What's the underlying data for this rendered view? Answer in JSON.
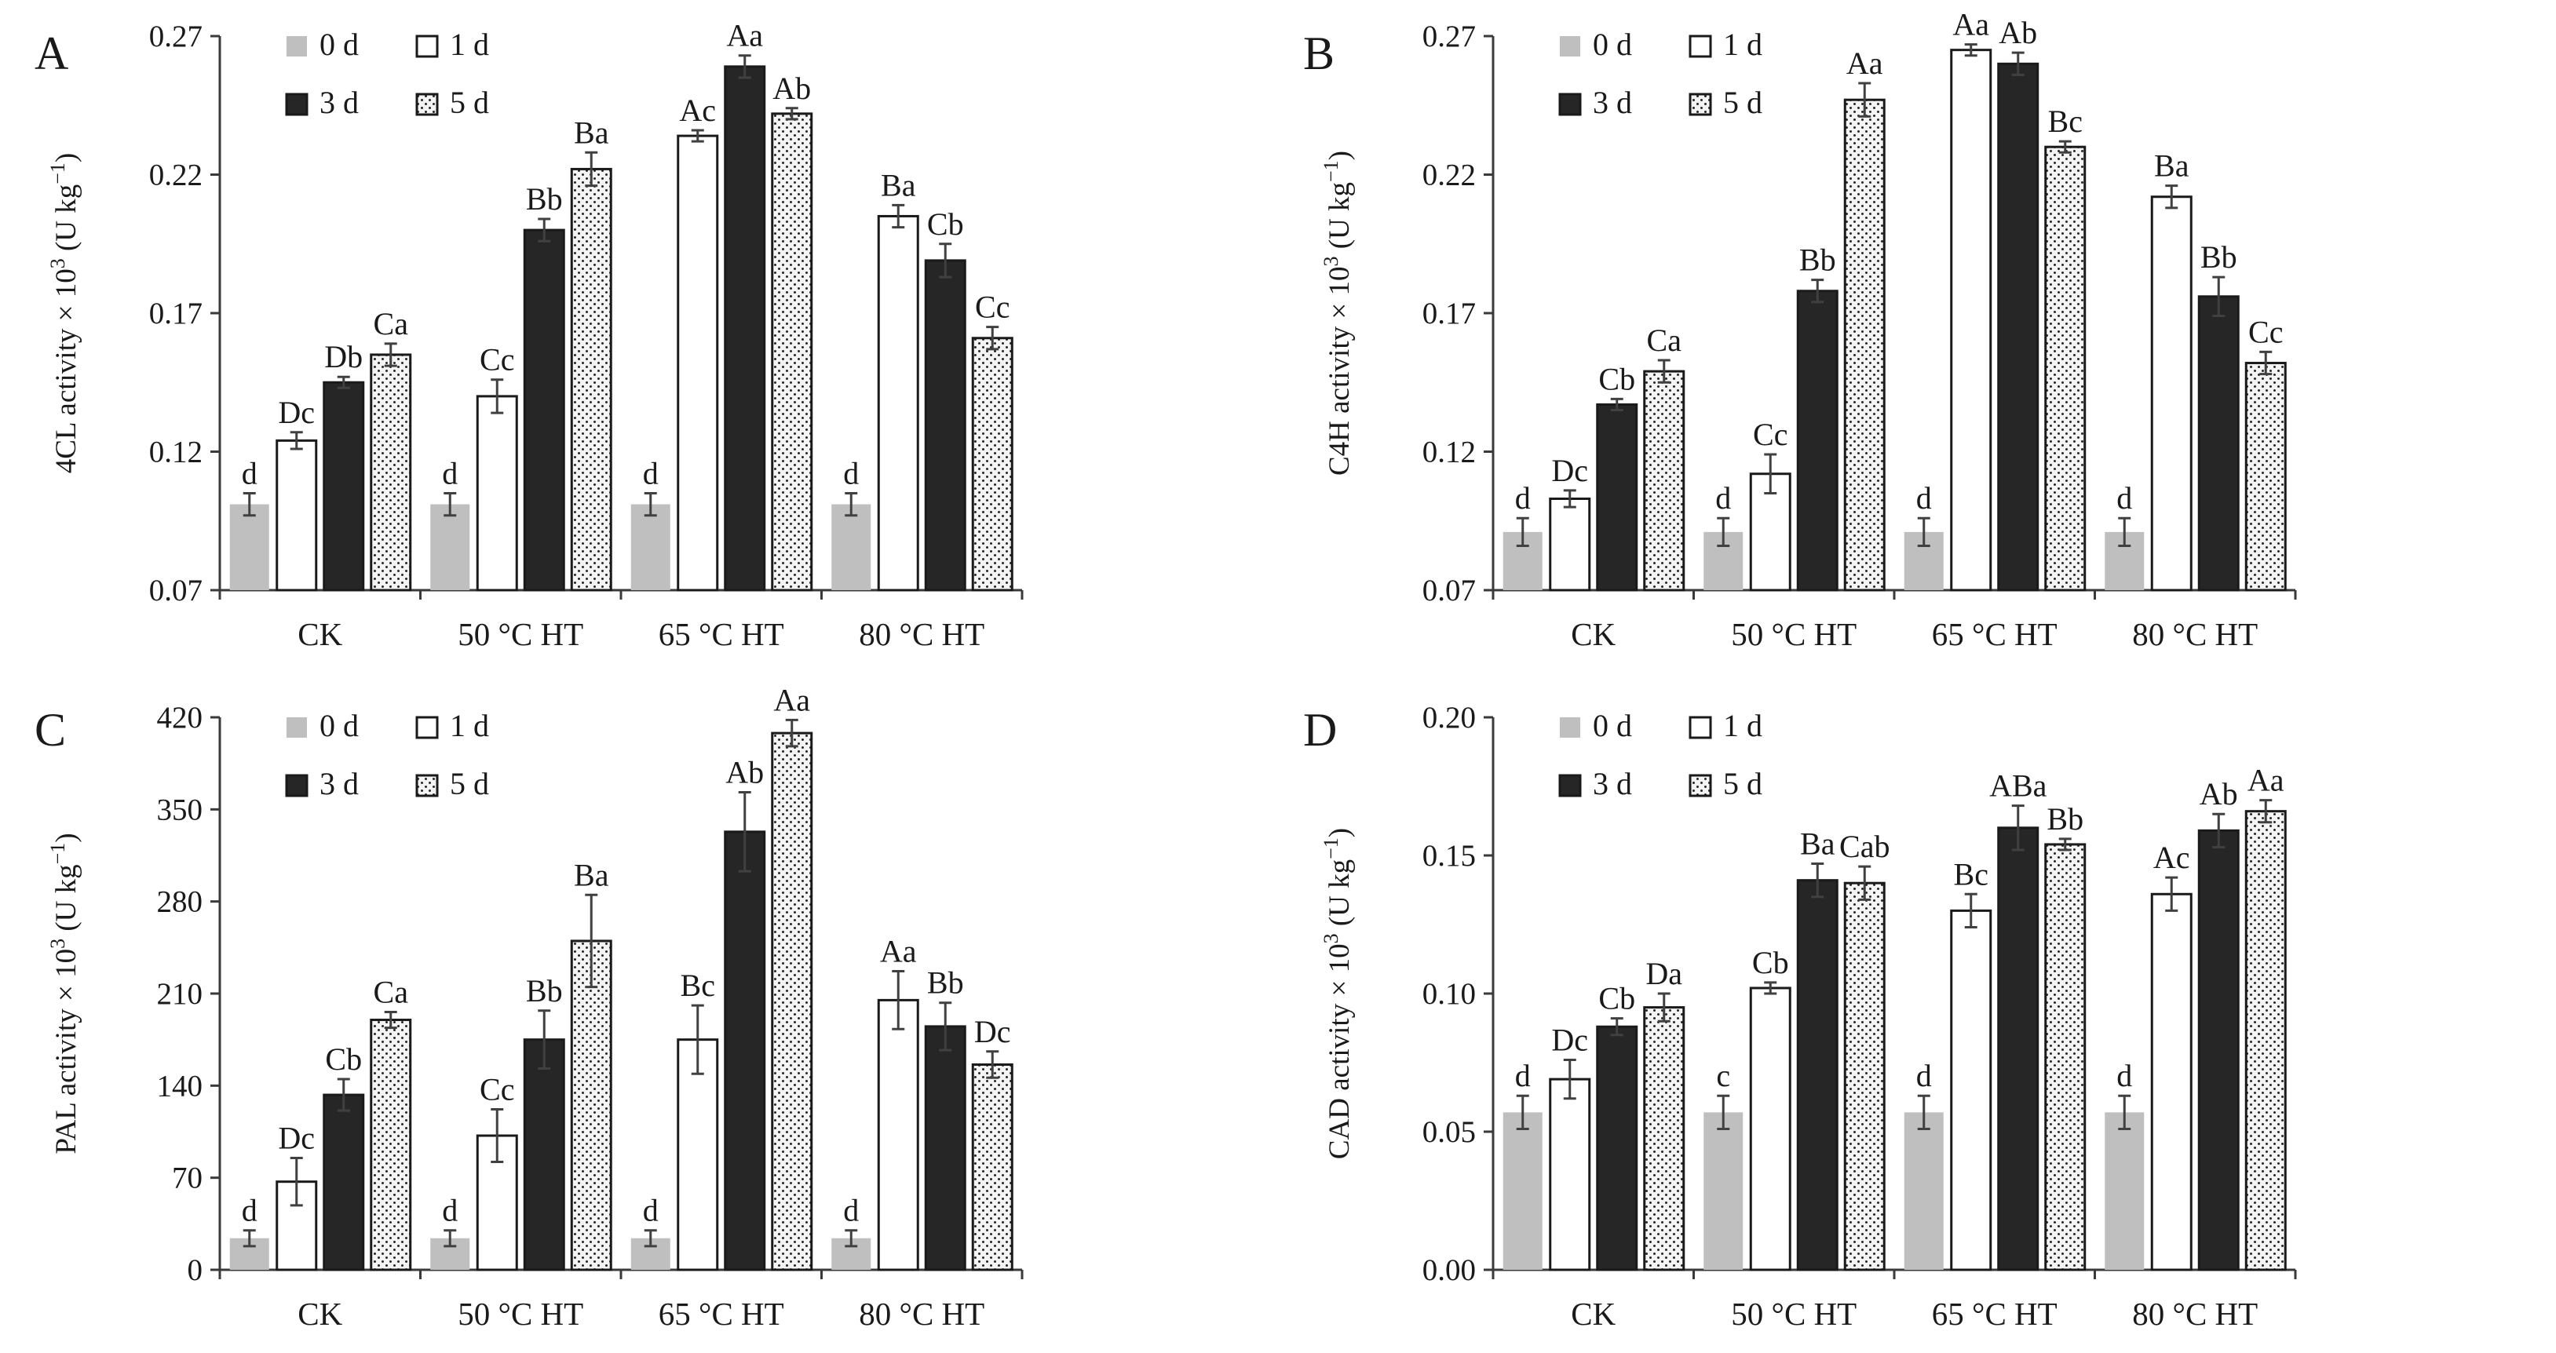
{
  "colors": {
    "day0": "#bfbfbf",
    "day1": "#ffffff",
    "day3": "#262626",
    "day5_bg": "#f4f4f4",
    "day5_dot": "#262626",
    "axis": "#3a3a3a",
    "errorbar": "#404040"
  },
  "chart_data": [
    {
      "type": "bar",
      "panel": "A",
      "ylabel_main": "4CL activity × 10",
      "ylabel_sup": "3",
      "ylabel_unit": " (U kg",
      "ylabel_unit_sup": "−1",
      "ylabel_close": ")",
      "ylim": [
        0.07,
        0.27
      ],
      "yticks": [
        "0.07",
        "0.12",
        "0.17",
        "0.22",
        "0.27"
      ],
      "categories": [
        "CK",
        "50 °C HT",
        "65 °C HT",
        "80 °C HT"
      ],
      "legend": [
        "0 d",
        "1 d",
        "3 d",
        "5 d"
      ],
      "series": [
        {
          "name": "0 d",
          "values": [
            0.101,
            0.101,
            0.101,
            0.101
          ],
          "errors": [
            0.004,
            0.004,
            0.004,
            0.004
          ],
          "labels": [
            "d",
            "d",
            "d",
            "d"
          ]
        },
        {
          "name": "1 d",
          "values": [
            0.124,
            0.14,
            0.234,
            0.205
          ],
          "errors": [
            0.003,
            0.006,
            0.002,
            0.004
          ],
          "labels": [
            "Dc",
            "Cc",
            "Ac",
            "Ba"
          ]
        },
        {
          "name": "3 d",
          "values": [
            0.145,
            0.2,
            0.259,
            0.189
          ],
          "errors": [
            0.002,
            0.004,
            0.004,
            0.006
          ],
          "labels": [
            "Db",
            "Bb",
            "Aa",
            "Cb"
          ]
        },
        {
          "name": "5 d",
          "values": [
            0.155,
            0.222,
            0.242,
            0.161
          ],
          "errors": [
            0.004,
            0.006,
            0.002,
            0.004
          ],
          "labels": [
            "Ca",
            "Ba",
            "Ab",
            "Cc"
          ]
        }
      ]
    },
    {
      "type": "bar",
      "panel": "B",
      "ylabel_main": "C4H activity × 10",
      "ylabel_sup": "3",
      "ylabel_unit": " (U kg",
      "ylabel_unit_sup": "−1",
      "ylabel_close": ")",
      "ylim": [
        0.07,
        0.27
      ],
      "yticks": [
        "0.07",
        "0.12",
        "0.17",
        "0.22",
        "0.27"
      ],
      "categories": [
        "CK",
        "50 °C HT",
        "65 °C HT",
        "80 °C HT"
      ],
      "legend": [
        "0 d",
        "1 d",
        "3 d",
        "5 d"
      ],
      "series": [
        {
          "name": "0 d",
          "values": [
            0.091,
            0.091,
            0.091,
            0.091
          ],
          "errors": [
            0.005,
            0.005,
            0.005,
            0.005
          ],
          "labels": [
            "d",
            "d",
            "d",
            "d"
          ]
        },
        {
          "name": "1 d",
          "values": [
            0.103,
            0.112,
            0.265,
            0.212
          ],
          "errors": [
            0.003,
            0.007,
            0.002,
            0.004
          ],
          "labels": [
            "Dc",
            "Cc",
            "Aa",
            "Ba"
          ]
        },
        {
          "name": "3 d",
          "values": [
            0.137,
            0.178,
            0.26,
            0.176
          ],
          "errors": [
            0.002,
            0.004,
            0.004,
            0.007
          ],
          "labels": [
            "Cb",
            "Bb",
            "Ab",
            "Bb"
          ]
        },
        {
          "name": "5 d",
          "values": [
            0.149,
            0.247,
            0.23,
            0.152
          ],
          "errors": [
            0.004,
            0.006,
            0.002,
            0.004
          ],
          "labels": [
            "Ca",
            "Aa",
            "Bc",
            "Cc"
          ]
        }
      ]
    },
    {
      "type": "bar",
      "panel": "C",
      "ylabel_main": "PAL activity × 10",
      "ylabel_sup": "3",
      "ylabel_unit": " (U kg",
      "ylabel_unit_sup": "−1",
      "ylabel_close": ")",
      "ylim": [
        0,
        420
      ],
      "yticks": [
        "0",
        "70",
        "140",
        "210",
        "280",
        "350",
        "420"
      ],
      "categories": [
        "CK",
        "50 °C HT",
        "65 °C HT",
        "80 °C HT"
      ],
      "legend": [
        "0 d",
        "1 d",
        "3 d",
        "5 d"
      ],
      "series": [
        {
          "name": "0 d",
          "values": [
            24,
            24,
            24,
            24
          ],
          "errors": [
            6,
            6,
            6,
            6
          ],
          "labels": [
            "d",
            "d",
            "d",
            "d"
          ]
        },
        {
          "name": "1 d",
          "values": [
            67,
            102,
            175,
            205
          ],
          "errors": [
            18,
            20,
            26,
            22
          ],
          "labels": [
            "Dc",
            "Cc",
            "Bc",
            "Aa"
          ]
        },
        {
          "name": "3 d",
          "values": [
            133,
            175,
            333,
            185
          ],
          "errors": [
            12,
            22,
            30,
            18
          ],
          "labels": [
            "Cb",
            "Bb",
            "Ab",
            "Bb"
          ]
        },
        {
          "name": "5 d",
          "values": [
            190,
            250,
            408,
            156
          ],
          "errors": [
            6,
            35,
            10,
            10
          ],
          "labels": [
            "Ca",
            "Ba",
            "Aa",
            "Dc"
          ]
        }
      ]
    },
    {
      "type": "bar",
      "panel": "D",
      "ylabel_main": "CAD activity × 10",
      "ylabel_sup": "3",
      "ylabel_unit": " (U kg",
      "ylabel_unit_sup": "−1",
      "ylabel_close": ")",
      "ylim": [
        0,
        0.2
      ],
      "yticks": [
        "0.00",
        "0.05",
        "0.10",
        "0.15",
        "0.20"
      ],
      "categories": [
        "CK",
        "50 °C HT",
        "65 °C HT",
        "80 °C HT"
      ],
      "legend": [
        "0 d",
        "1 d",
        "3 d",
        "5 d"
      ],
      "series": [
        {
          "name": "0 d",
          "values": [
            0.057,
            0.057,
            0.057,
            0.057
          ],
          "errors": [
            0.006,
            0.006,
            0.006,
            0.006
          ],
          "labels": [
            "d",
            "c",
            "d",
            "d"
          ]
        },
        {
          "name": "1 d",
          "values": [
            0.069,
            0.102,
            0.13,
            0.136
          ],
          "errors": [
            0.007,
            0.002,
            0.006,
            0.006
          ],
          "labels": [
            "Dc",
            "Cb",
            "Bc",
            "Ac"
          ]
        },
        {
          "name": "3 d",
          "values": [
            0.088,
            0.141,
            0.16,
            0.159
          ],
          "errors": [
            0.003,
            0.006,
            0.008,
            0.006
          ],
          "labels": [
            "Cb",
            "Ba",
            "ABa",
            "Ab"
          ]
        },
        {
          "name": "5 d",
          "values": [
            0.095,
            0.14,
            0.154,
            0.166
          ],
          "errors": [
            0.005,
            0.006,
            0.002,
            0.004
          ],
          "labels": [
            "Da",
            "Cab",
            "Bb",
            "Aa"
          ]
        }
      ]
    }
  ]
}
